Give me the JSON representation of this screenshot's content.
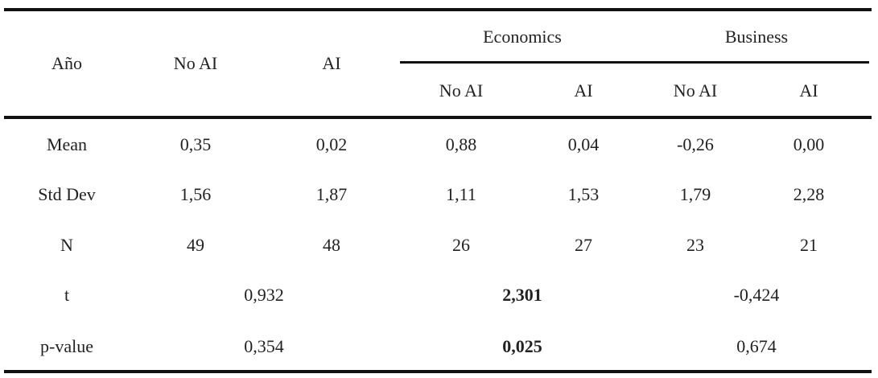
{
  "table": {
    "header": {
      "year": "Año",
      "no_ai": "No AI",
      "ai": "AI",
      "groups": [
        {
          "label": "Economics",
          "columns": [
            "No AI",
            "AI"
          ]
        },
        {
          "label": "Business",
          "columns": [
            "No AI",
            "AI"
          ]
        }
      ]
    },
    "rows": [
      {
        "label": "Mean",
        "values": [
          "0,35",
          "0,02",
          "0,88",
          "0,04",
          "-0,26",
          "0,00"
        ]
      },
      {
        "label": "Std Dev",
        "values": [
          "1,56",
          "1,87",
          "1,11",
          "1,53",
          "1,79",
          "2,28"
        ]
      },
      {
        "label": "N",
        "values": [
          "49",
          "48",
          "26",
          "27",
          "23",
          "21"
        ]
      }
    ],
    "tests": [
      {
        "label": "t",
        "values": [
          "0,932",
          "2,301",
          "-0,424"
        ]
      },
      {
        "label": "p-value",
        "values": [
          "0,354",
          "0,025",
          "0,674"
        ]
      }
    ]
  }
}
